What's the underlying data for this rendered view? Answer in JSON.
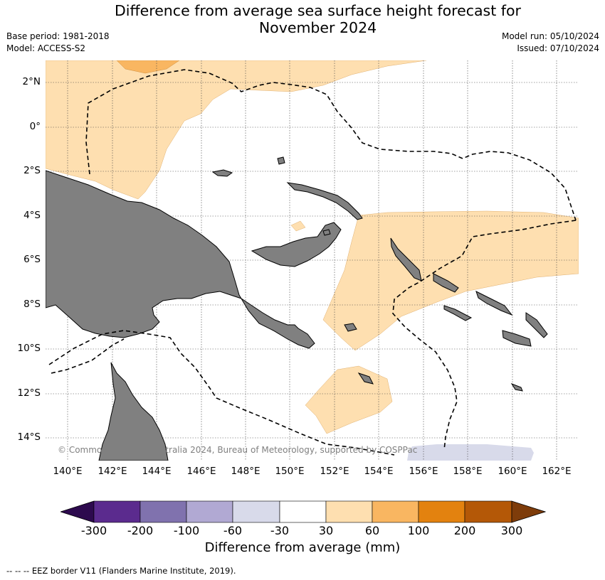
{
  "title_line1": "Difference from average sea surface height forecast for",
  "title_line2": "November 2024",
  "base_period": "Base period: 1981-2018",
  "model": "Model: ACCESS-S2",
  "model_run": "Model run: 05/10/2024",
  "issued": "Issued: 07/10/2024",
  "lat_labels": [
    "2°N",
    "0°",
    "2°S",
    "4°S",
    "6°S",
    "8°S",
    "10°S",
    "12°S",
    "14°S"
  ],
  "lon_labels": [
    "140°E",
    "142°E",
    "144°E",
    "146°E",
    "148°E",
    "150°E",
    "152°E",
    "154°E",
    "156°E",
    "158°E",
    "160°E",
    "162°E"
  ],
  "copyright": "© Commonwealth of Australia 2024, Bureau of Meteorology, supported by COSPPac",
  "colorbar": {
    "ticks": [
      "-300",
      "-200",
      "-100",
      "-60",
      "-30",
      "30",
      "60",
      "100",
      "200",
      "300"
    ],
    "colors": [
      "#5b2b8e",
      "#8072ae",
      "#b1a9d3",
      "#d8daea",
      "#ffffff",
      "#fedfb0",
      "#f9b661",
      "#e3820f",
      "#b45807"
    ],
    "extend_min_color": "#2d0a4e",
    "extend_max_color": "#7e3c0a",
    "label": "Difference from average (mm)"
  },
  "footer": "--  --  -- EEZ border V11 (Flanders Marine Institute, 2019)."
}
